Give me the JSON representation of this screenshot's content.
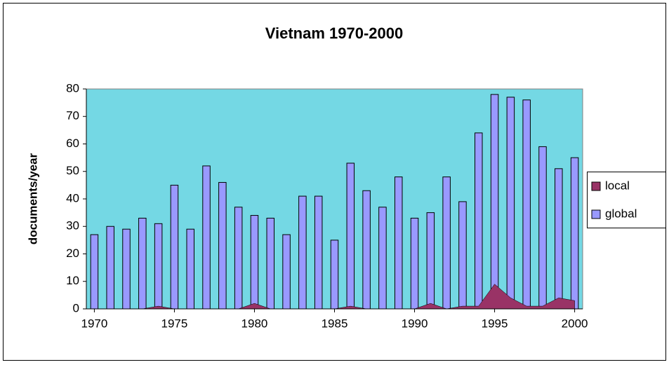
{
  "chart_data": {
    "type": "bar",
    "title": "Vietnam 1970-2000",
    "y_label": "documents/year",
    "x": [
      1970,
      1971,
      1972,
      1973,
      1974,
      1975,
      1976,
      1977,
      1978,
      1979,
      1980,
      1981,
      1982,
      1983,
      1984,
      1985,
      1986,
      1987,
      1988,
      1989,
      1990,
      1991,
      1992,
      1993,
      1994,
      1995,
      1996,
      1997,
      1998,
      1999,
      2000
    ],
    "series": [
      {
        "name": "local",
        "type": "area",
        "color": "#993366",
        "values": [
          0,
          0,
          0,
          0,
          1,
          0,
          0,
          0,
          0,
          0,
          2,
          0,
          0,
          0,
          0,
          0,
          1,
          0,
          0,
          0,
          0,
          2,
          0,
          1,
          1,
          9,
          4,
          1,
          1,
          4,
          3
        ]
      },
      {
        "name": "global",
        "type": "bar",
        "color": "#9999ff",
        "values": [
          27,
          30,
          29,
          33,
          31,
          45,
          29,
          52,
          46,
          37,
          34,
          33,
          27,
          41,
          41,
          25,
          53,
          43,
          37,
          48,
          33,
          35,
          48,
          39,
          64,
          78,
          77,
          76,
          59,
          51,
          55
        ]
      }
    ],
    "xlim": [
      1969.5,
      2000.5
    ],
    "xticks": [
      1970,
      1975,
      1980,
      1985,
      1990,
      1995,
      2000
    ],
    "ylim": [
      0,
      80
    ],
    "yticks": [
      0,
      10,
      20,
      30,
      40,
      50,
      60,
      70,
      80
    ],
    "plot_background": "#74d8e4",
    "legend": "right"
  }
}
